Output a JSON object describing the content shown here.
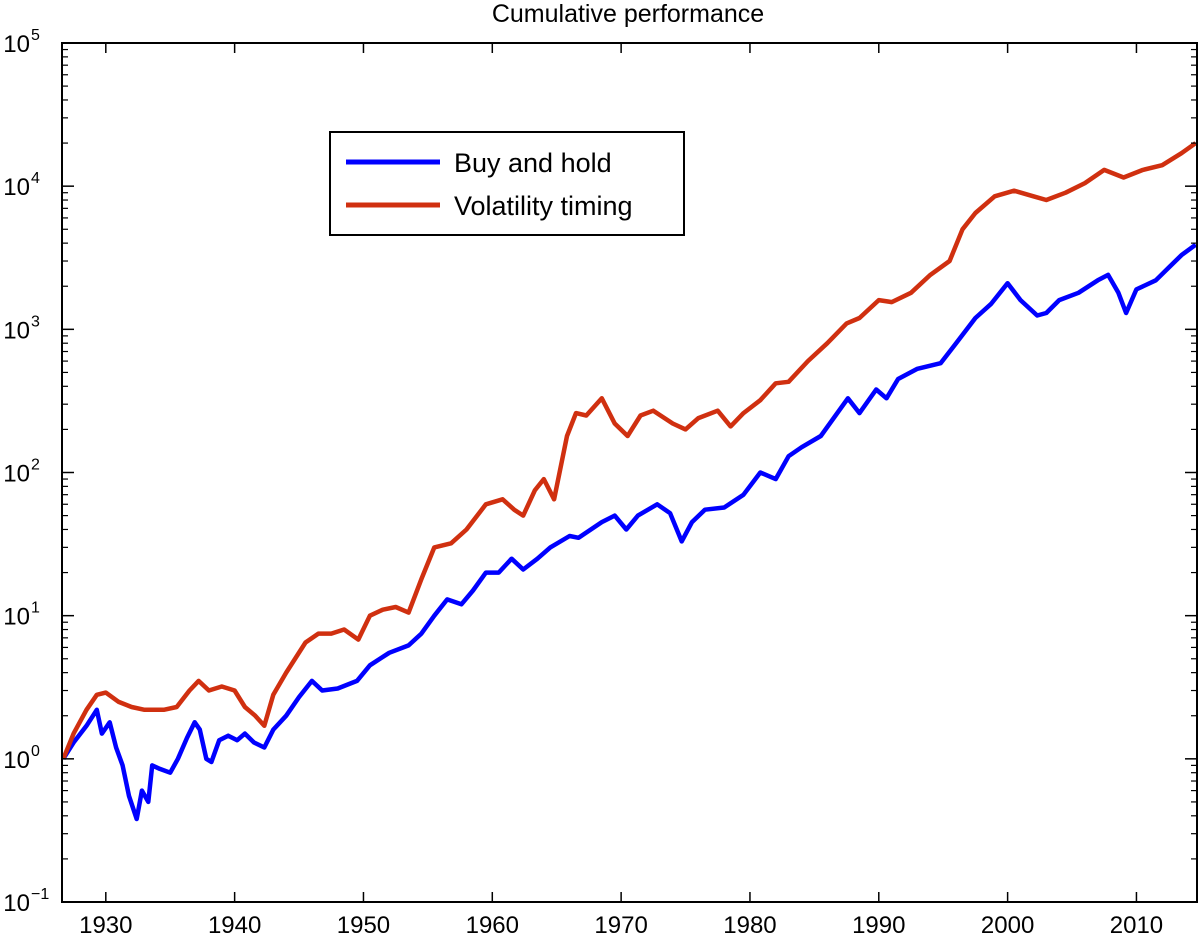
{
  "chart_data": {
    "type": "line",
    "title": "Cumulative performance",
    "xlabel": "",
    "ylabel": "",
    "xlim": [
      1926.6,
      2014.7
    ],
    "x_ticks": [
      1930,
      1940,
      1950,
      1960,
      1970,
      1980,
      1990,
      2000,
      2010
    ],
    "y_scale": "log",
    "ylim": [
      0.1,
      100000
    ],
    "y_ticks": [
      {
        "value": 0.1,
        "base": "10",
        "exp": "−1"
      },
      {
        "value": 1,
        "base": "10",
        "exp": "0"
      },
      {
        "value": 10,
        "base": "10",
        "exp": "1"
      },
      {
        "value": 100,
        "base": "10",
        "exp": "2"
      },
      {
        "value": 1000,
        "base": "10",
        "exp": "3"
      },
      {
        "value": 10000,
        "base": "10",
        "exp": "4"
      },
      {
        "value": 100000,
        "base": "10",
        "exp": "5"
      }
    ],
    "grid": false,
    "legend_position": "upper-left",
    "series": [
      {
        "name": "Buy and hold",
        "color": "#0000ff",
        "points": [
          [
            1926.7,
            1.0
          ],
          [
            1927.5,
            1.3
          ],
          [
            1928.5,
            1.7
          ],
          [
            1929.3,
            2.2
          ],
          [
            1929.7,
            1.5
          ],
          [
            1930.3,
            1.8
          ],
          [
            1930.8,
            1.2
          ],
          [
            1931.3,
            0.9
          ],
          [
            1931.8,
            0.55
          ],
          [
            1932.4,
            0.38
          ],
          [
            1932.8,
            0.6
          ],
          [
            1933.3,
            0.5
          ],
          [
            1933.6,
            0.9
          ],
          [
            1934.2,
            0.85
          ],
          [
            1935.0,
            0.8
          ],
          [
            1935.6,
            1.0
          ],
          [
            1936.3,
            1.4
          ],
          [
            1936.9,
            1.8
          ],
          [
            1937.3,
            1.6
          ],
          [
            1937.8,
            1.0
          ],
          [
            1938.2,
            0.95
          ],
          [
            1938.8,
            1.35
          ],
          [
            1939.5,
            1.45
          ],
          [
            1940.2,
            1.35
          ],
          [
            1940.8,
            1.5
          ],
          [
            1941.5,
            1.3
          ],
          [
            1942.3,
            1.2
          ],
          [
            1943.0,
            1.6
          ],
          [
            1944.0,
            2.0
          ],
          [
            1945.0,
            2.7
          ],
          [
            1946.0,
            3.5
          ],
          [
            1946.8,
            3.0
          ],
          [
            1948.0,
            3.1
          ],
          [
            1949.5,
            3.5
          ],
          [
            1950.5,
            4.5
          ],
          [
            1952.0,
            5.5
          ],
          [
            1953.5,
            6.2
          ],
          [
            1954.5,
            7.5
          ],
          [
            1955.5,
            10.0
          ],
          [
            1956.5,
            13.0
          ],
          [
            1957.6,
            12.0
          ],
          [
            1958.5,
            15.0
          ],
          [
            1959.5,
            20.0
          ],
          [
            1960.5,
            20.0
          ],
          [
            1961.5,
            25.0
          ],
          [
            1962.4,
            21.0
          ],
          [
            1963.5,
            25.0
          ],
          [
            1964.5,
            30.0
          ],
          [
            1966.0,
            36.0
          ],
          [
            1966.7,
            35.0
          ],
          [
            1968.5,
            45.0
          ],
          [
            1969.5,
            50.0
          ],
          [
            1970.4,
            40.0
          ],
          [
            1971.3,
            50.0
          ],
          [
            1972.8,
            60.0
          ],
          [
            1973.8,
            52.0
          ],
          [
            1974.7,
            33.0
          ],
          [
            1975.5,
            45.0
          ],
          [
            1976.5,
            55.0
          ],
          [
            1978.0,
            57.0
          ],
          [
            1979.5,
            70.0
          ],
          [
            1980.8,
            100.0
          ],
          [
            1982.0,
            90.0
          ],
          [
            1983.0,
            130.0
          ],
          [
            1984.0,
            150.0
          ],
          [
            1985.5,
            180.0
          ],
          [
            1987.6,
            330.0
          ],
          [
            1988.5,
            260.0
          ],
          [
            1989.8,
            380.0
          ],
          [
            1990.6,
            330.0
          ],
          [
            1991.5,
            450.0
          ],
          [
            1993.0,
            530.0
          ],
          [
            1994.8,
            580.0
          ],
          [
            1996.0,
            800.0
          ],
          [
            1997.5,
            1200.0
          ],
          [
            1998.7,
            1500.0
          ],
          [
            2000.0,
            2100.0
          ],
          [
            2001.0,
            1600.0
          ],
          [
            2002.3,
            1250.0
          ],
          [
            2003.0,
            1300.0
          ],
          [
            2004.0,
            1600.0
          ],
          [
            2005.5,
            1800.0
          ],
          [
            2007.0,
            2200.0
          ],
          [
            2007.8,
            2400.0
          ],
          [
            2008.6,
            1800.0
          ],
          [
            2009.2,
            1300.0
          ],
          [
            2010.0,
            1900.0
          ],
          [
            2011.5,
            2200.0
          ],
          [
            2012.5,
            2700.0
          ],
          [
            2013.5,
            3300.0
          ],
          [
            2014.6,
            3900.0
          ]
        ]
      },
      {
        "name": "Volatility timing",
        "color": "#d03010",
        "points": [
          [
            1926.7,
            1.0
          ],
          [
            1927.5,
            1.5
          ],
          [
            1928.5,
            2.2
          ],
          [
            1929.3,
            2.8
          ],
          [
            1930.0,
            2.9
          ],
          [
            1931.0,
            2.5
          ],
          [
            1932.0,
            2.3
          ],
          [
            1933.0,
            2.2
          ],
          [
            1934.5,
            2.2
          ],
          [
            1935.5,
            2.3
          ],
          [
            1936.5,
            3.0
          ],
          [
            1937.2,
            3.5
          ],
          [
            1938.0,
            3.0
          ],
          [
            1939.0,
            3.2
          ],
          [
            1940.0,
            3.0
          ],
          [
            1940.8,
            2.3
          ],
          [
            1941.6,
            2.0
          ],
          [
            1942.3,
            1.7
          ],
          [
            1943.0,
            2.8
          ],
          [
            1944.0,
            4.0
          ],
          [
            1945.5,
            6.5
          ],
          [
            1946.5,
            7.5
          ],
          [
            1947.5,
            7.5
          ],
          [
            1948.5,
            8.0
          ],
          [
            1949.6,
            6.8
          ],
          [
            1950.5,
            10.0
          ],
          [
            1951.5,
            11.0
          ],
          [
            1952.5,
            11.5
          ],
          [
            1953.5,
            10.5
          ],
          [
            1954.5,
            18.0
          ],
          [
            1955.5,
            30.0
          ],
          [
            1956.8,
            32.0
          ],
          [
            1958.0,
            40.0
          ],
          [
            1959.5,
            60.0
          ],
          [
            1960.8,
            65.0
          ],
          [
            1961.7,
            55.0
          ],
          [
            1962.4,
            50.0
          ],
          [
            1963.3,
            75.0
          ],
          [
            1964.0,
            90.0
          ],
          [
            1964.8,
            65.0
          ],
          [
            1965.8,
            180.0
          ],
          [
            1966.5,
            260.0
          ],
          [
            1967.3,
            250.0
          ],
          [
            1968.5,
            330.0
          ],
          [
            1969.5,
            220.0
          ],
          [
            1970.5,
            180.0
          ],
          [
            1971.5,
            250.0
          ],
          [
            1972.5,
            270.0
          ],
          [
            1974.0,
            220.0
          ],
          [
            1975.0,
            200.0
          ],
          [
            1976.0,
            240.0
          ],
          [
            1977.5,
            270.0
          ],
          [
            1978.5,
            210.0
          ],
          [
            1979.5,
            260.0
          ],
          [
            1980.8,
            320.0
          ],
          [
            1982.0,
            420.0
          ],
          [
            1983.0,
            430.0
          ],
          [
            1984.5,
            600.0
          ],
          [
            1986.0,
            800.0
          ],
          [
            1987.5,
            1100.0
          ],
          [
            1988.5,
            1200.0
          ],
          [
            1990.0,
            1600.0
          ],
          [
            1991.0,
            1550.0
          ],
          [
            1992.5,
            1800.0
          ],
          [
            1994.0,
            2400.0
          ],
          [
            1995.5,
            3000.0
          ],
          [
            1996.5,
            5000.0
          ],
          [
            1997.5,
            6500.0
          ],
          [
            1999.0,
            8500.0
          ],
          [
            2000.5,
            9300.0
          ],
          [
            2002.0,
            8500.0
          ],
          [
            2003.0,
            8000.0
          ],
          [
            2004.5,
            9000.0
          ],
          [
            2006.0,
            10500.0
          ],
          [
            2007.5,
            13000.0
          ],
          [
            2009.0,
            11500.0
          ],
          [
            2010.5,
            13000.0
          ],
          [
            2012.0,
            14000.0
          ],
          [
            2013.5,
            17000.0
          ],
          [
            2014.6,
            20000.0
          ]
        ]
      }
    ]
  }
}
